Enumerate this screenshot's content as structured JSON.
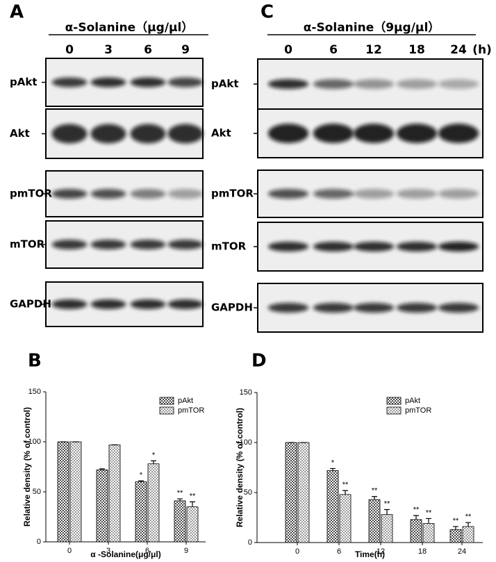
{
  "blots": [
    {
      "panel": "A",
      "header": "α-Solanine（μg/μl）",
      "lanes": [
        "0",
        "3",
        "6",
        "9"
      ],
      "rows": [
        "pAkt",
        "Akt",
        "pmTOR",
        "mTOR",
        "GAPDH"
      ]
    },
    {
      "panel": "C",
      "header": "α-Solanine（9μg/μl）",
      "lanes": [
        "0",
        "6",
        "12",
        "18",
        "24"
      ],
      "unit": "(h)",
      "rows": [
        "pAkt",
        "Akt",
        "pmTOR",
        "mTOR",
        "GAPDH"
      ]
    }
  ],
  "chart_data": [
    {
      "type": "bar",
      "panel": "B",
      "ylabel": "Relative density (% of control)",
      "xlabel": "α -Solanine(μg/μl)",
      "categories": [
        "0",
        "3",
        "6",
        "9"
      ],
      "ylim": [
        0,
        150
      ],
      "yticks": [
        0,
        50,
        100,
        150
      ],
      "series": [
        {
          "name": "pAkt",
          "color": "#4a4a4a",
          "values": [
            100,
            72,
            60,
            41
          ],
          "errors": [
            0,
            1,
            1,
            2
          ],
          "significance": [
            null,
            null,
            "*",
            "**"
          ]
        },
        {
          "name": "pmTOR",
          "color": "#9a9a9a",
          "values": [
            100,
            97,
            78,
            35
          ],
          "errors": [
            0,
            0,
            3,
            5
          ],
          "significance": [
            null,
            null,
            "*",
            "**"
          ]
        }
      ]
    },
    {
      "type": "bar",
      "panel": "D",
      "ylabel": "Relative density (% of control)",
      "xlabel": "Time(h)",
      "categories": [
        "0",
        "6",
        "12",
        "18",
        "24"
      ],
      "ylim": [
        0,
        150
      ],
      "yticks": [
        0,
        50,
        100,
        150
      ],
      "series": [
        {
          "name": "pAkt",
          "color": "#4a4a4a",
          "values": [
            100,
            72,
            43,
            23,
            13
          ],
          "errors": [
            0,
            2,
            3,
            4,
            3
          ],
          "significance": [
            null,
            "*",
            "**",
            "**",
            "**"
          ]
        },
        {
          "name": "pmTOR",
          "color": "#9a9a9a",
          "values": [
            100,
            48,
            28,
            19,
            16
          ],
          "errors": [
            0,
            4,
            5,
            5,
            4
          ],
          "significance": [
            null,
            "**",
            "**",
            "**",
            "**"
          ]
        }
      ]
    }
  ]
}
